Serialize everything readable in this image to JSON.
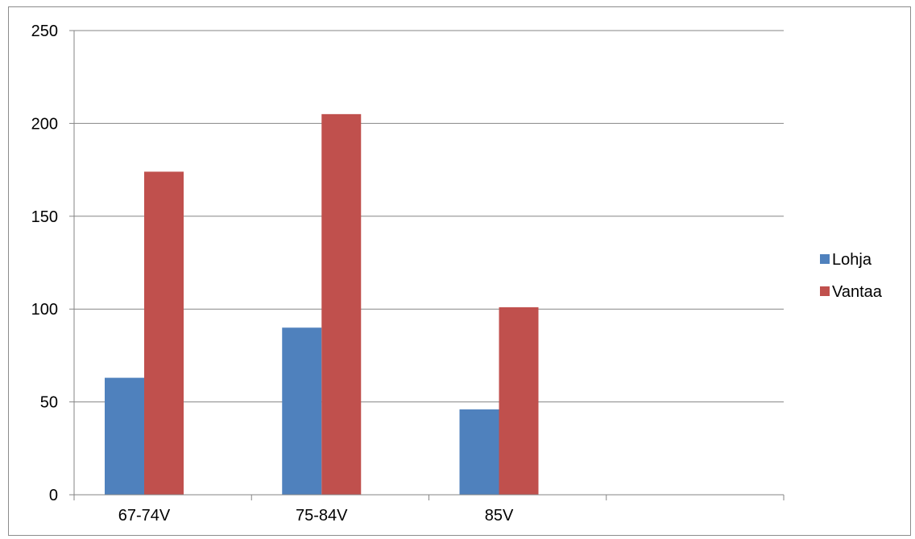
{
  "chart_data": {
    "type": "bar",
    "categories": [
      "67-74V",
      "75-84V",
      "85V",
      ""
    ],
    "series": [
      {
        "name": "Lohja",
        "values": [
          63,
          90,
          46,
          null
        ],
        "color": "#4f81bd"
      },
      {
        "name": "Vantaa",
        "values": [
          174,
          205,
          101,
          null
        ],
        "color": "#c0504d"
      }
    ],
    "ylim": [
      0,
      250
    ],
    "yticks": [
      "0",
      "50",
      "100",
      "150",
      "200",
      "250"
    ],
    "grid": true,
    "gridColor": "#868686",
    "legend_position": "right"
  }
}
